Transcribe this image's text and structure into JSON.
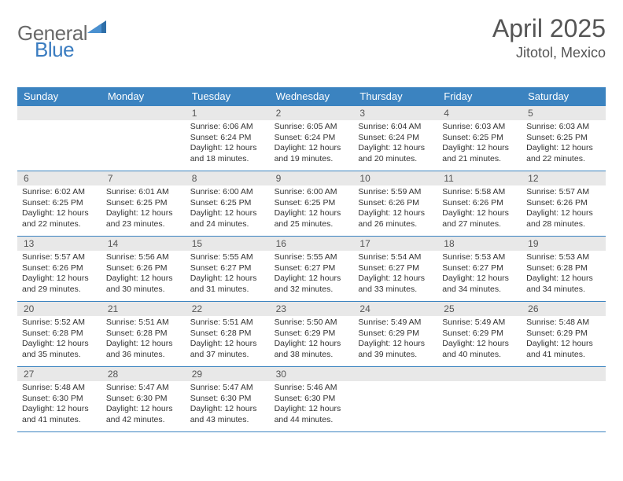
{
  "logo": {
    "general": "General",
    "blue": "Blue"
  },
  "title": "April 2025",
  "location": "Jitotol, Mexico",
  "colors": {
    "header_bg": "#3b83c0",
    "daynum_bg": "#e8e8e8",
    "logo_gray": "#6a6a6a",
    "logo_blue": "#3a7cc0",
    "text": "#333333",
    "border": "#3b83c0",
    "background": "#ffffff"
  },
  "typography": {
    "title_fontsize": 32,
    "location_fontsize": 18,
    "dayheader_fontsize": 13,
    "daynum_fontsize": 12,
    "dayinfo_fontsize": 10.5
  },
  "layout": {
    "columns": 7,
    "rows": 5,
    "cell_min_height": 82
  },
  "day_labels": [
    "Sunday",
    "Monday",
    "Tuesday",
    "Wednesday",
    "Thursday",
    "Friday",
    "Saturday"
  ],
  "weeks": [
    [
      {
        "empty": true
      },
      {
        "empty": true
      },
      {
        "n": "1",
        "sunrise": "6:06 AM",
        "sunset": "6:24 PM",
        "daylight": "12 hours and 18 minutes."
      },
      {
        "n": "2",
        "sunrise": "6:05 AM",
        "sunset": "6:24 PM",
        "daylight": "12 hours and 19 minutes."
      },
      {
        "n": "3",
        "sunrise": "6:04 AM",
        "sunset": "6:24 PM",
        "daylight": "12 hours and 20 minutes."
      },
      {
        "n": "4",
        "sunrise": "6:03 AM",
        "sunset": "6:25 PM",
        "daylight": "12 hours and 21 minutes."
      },
      {
        "n": "5",
        "sunrise": "6:03 AM",
        "sunset": "6:25 PM",
        "daylight": "12 hours and 22 minutes."
      }
    ],
    [
      {
        "n": "6",
        "sunrise": "6:02 AM",
        "sunset": "6:25 PM",
        "daylight": "12 hours and 22 minutes."
      },
      {
        "n": "7",
        "sunrise": "6:01 AM",
        "sunset": "6:25 PM",
        "daylight": "12 hours and 23 minutes."
      },
      {
        "n": "8",
        "sunrise": "6:00 AM",
        "sunset": "6:25 PM",
        "daylight": "12 hours and 24 minutes."
      },
      {
        "n": "9",
        "sunrise": "6:00 AM",
        "sunset": "6:25 PM",
        "daylight": "12 hours and 25 minutes."
      },
      {
        "n": "10",
        "sunrise": "5:59 AM",
        "sunset": "6:26 PM",
        "daylight": "12 hours and 26 minutes."
      },
      {
        "n": "11",
        "sunrise": "5:58 AM",
        "sunset": "6:26 PM",
        "daylight": "12 hours and 27 minutes."
      },
      {
        "n": "12",
        "sunrise": "5:57 AM",
        "sunset": "6:26 PM",
        "daylight": "12 hours and 28 minutes."
      }
    ],
    [
      {
        "n": "13",
        "sunrise": "5:57 AM",
        "sunset": "6:26 PM",
        "daylight": "12 hours and 29 minutes."
      },
      {
        "n": "14",
        "sunrise": "5:56 AM",
        "sunset": "6:26 PM",
        "daylight": "12 hours and 30 minutes."
      },
      {
        "n": "15",
        "sunrise": "5:55 AM",
        "sunset": "6:27 PM",
        "daylight": "12 hours and 31 minutes."
      },
      {
        "n": "16",
        "sunrise": "5:55 AM",
        "sunset": "6:27 PM",
        "daylight": "12 hours and 32 minutes."
      },
      {
        "n": "17",
        "sunrise": "5:54 AM",
        "sunset": "6:27 PM",
        "daylight": "12 hours and 33 minutes."
      },
      {
        "n": "18",
        "sunrise": "5:53 AM",
        "sunset": "6:27 PM",
        "daylight": "12 hours and 34 minutes."
      },
      {
        "n": "19",
        "sunrise": "5:53 AM",
        "sunset": "6:28 PM",
        "daylight": "12 hours and 34 minutes."
      }
    ],
    [
      {
        "n": "20",
        "sunrise": "5:52 AM",
        "sunset": "6:28 PM",
        "daylight": "12 hours and 35 minutes."
      },
      {
        "n": "21",
        "sunrise": "5:51 AM",
        "sunset": "6:28 PM",
        "daylight": "12 hours and 36 minutes."
      },
      {
        "n": "22",
        "sunrise": "5:51 AM",
        "sunset": "6:28 PM",
        "daylight": "12 hours and 37 minutes."
      },
      {
        "n": "23",
        "sunrise": "5:50 AM",
        "sunset": "6:29 PM",
        "daylight": "12 hours and 38 minutes."
      },
      {
        "n": "24",
        "sunrise": "5:49 AM",
        "sunset": "6:29 PM",
        "daylight": "12 hours and 39 minutes."
      },
      {
        "n": "25",
        "sunrise": "5:49 AM",
        "sunset": "6:29 PM",
        "daylight": "12 hours and 40 minutes."
      },
      {
        "n": "26",
        "sunrise": "5:48 AM",
        "sunset": "6:29 PM",
        "daylight": "12 hours and 41 minutes."
      }
    ],
    [
      {
        "n": "27",
        "sunrise": "5:48 AM",
        "sunset": "6:30 PM",
        "daylight": "12 hours and 41 minutes."
      },
      {
        "n": "28",
        "sunrise": "5:47 AM",
        "sunset": "6:30 PM",
        "daylight": "12 hours and 42 minutes."
      },
      {
        "n": "29",
        "sunrise": "5:47 AM",
        "sunset": "6:30 PM",
        "daylight": "12 hours and 43 minutes."
      },
      {
        "n": "30",
        "sunrise": "5:46 AM",
        "sunset": "6:30 PM",
        "daylight": "12 hours and 44 minutes."
      },
      {
        "empty": true
      },
      {
        "empty": true
      },
      {
        "empty": true
      }
    ]
  ]
}
